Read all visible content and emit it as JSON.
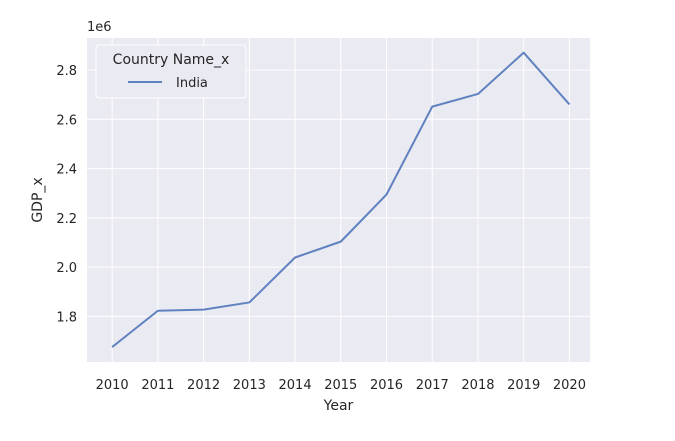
{
  "chart_data": {
    "type": "line",
    "x": [
      2010,
      2011,
      2012,
      2013,
      2014,
      2015,
      2016,
      2017,
      2018,
      2019,
      2020
    ],
    "series": [
      {
        "name": "India",
        "values": [
          1675615,
          1823050,
          1827638,
          1856722,
          2039127,
          2103588,
          2294797,
          2651473,
          2702930,
          2870504,
          2660245
        ]
      }
    ],
    "xlabel": "Year",
    "ylabel": "GDP_x",
    "y_offset_label": "1e6",
    "yticks": [
      1.8,
      2.0,
      2.2,
      2.4,
      2.6,
      2.8
    ],
    "ytick_labels": [
      "1.8",
      "2.0",
      "2.2",
      "2.4",
      "2.6",
      "2.8"
    ],
    "xtick_labels": [
      "2010",
      "2011",
      "2012",
      "2013",
      "2014",
      "2015",
      "2016",
      "2017",
      "2018",
      "2019",
      "2020"
    ],
    "xlim": [
      2009.45,
      2020.45
    ],
    "ylim": [
      1615000,
      2930000
    ],
    "grid": true,
    "legend": {
      "title": "Country Name_x",
      "entries": [
        "India"
      ],
      "placement": "upper-left"
    },
    "colors": {
      "line": "#6082c0",
      "plot_bg": "#eaeaf2",
      "grid": "#ffffff"
    }
  }
}
